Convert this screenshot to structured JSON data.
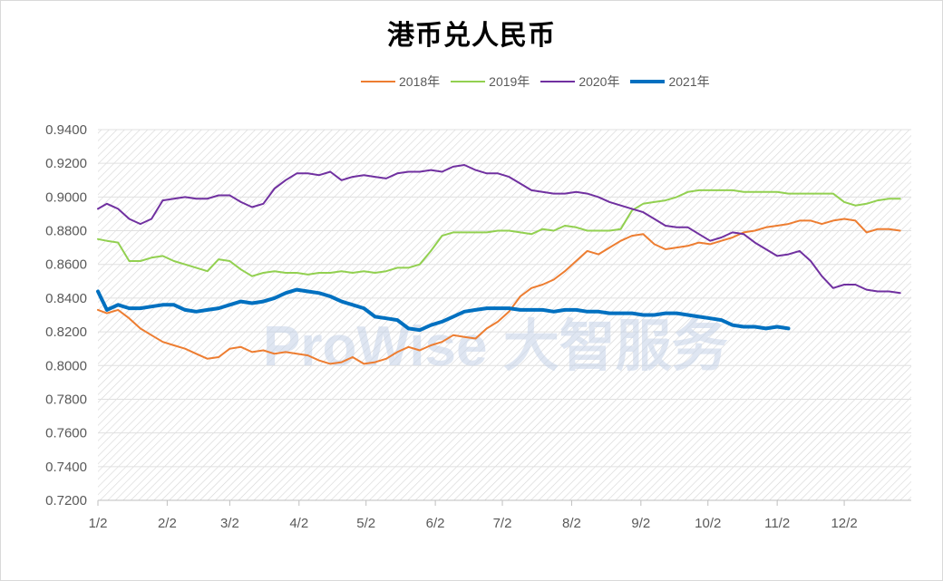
{
  "chart_data": {
    "type": "line",
    "title": "港币兑人民币",
    "watermark": "ProWise 大智服务",
    "ylim": [
      0.72,
      0.94
    ],
    "y_ticks": [
      "0.9400",
      "0.9200",
      "0.9000",
      "0.8800",
      "0.8600",
      "0.8400",
      "0.8200",
      "0.8000",
      "0.7800",
      "0.7600",
      "0.7400",
      "0.7200"
    ],
    "x_ticks": [
      "1/2",
      "2/2",
      "3/2",
      "4/2",
      "5/2",
      "6/2",
      "7/2",
      "8/2",
      "9/2",
      "10/2",
      "11/2",
      "12/2"
    ],
    "legend_position": "top",
    "grid": "hatched",
    "series": [
      {
        "name": "2018年",
        "color": "#ed7d31",
        "width": 2,
        "x": [
          1,
          5,
          10,
          15,
          20,
          25,
          30,
          35,
          40,
          45,
          50,
          55,
          60,
          65,
          70,
          75,
          80,
          85,
          90,
          95,
          100,
          105,
          110,
          115,
          120,
          125,
          130,
          135,
          140,
          145,
          150,
          155,
          160,
          165,
          170,
          175,
          180,
          185,
          190,
          195,
          200,
          205,
          210,
          215,
          220,
          225,
          230,
          235,
          240,
          245,
          250,
          255,
          260,
          265,
          270,
          275,
          280,
          285,
          290,
          295,
          300,
          305,
          310,
          315,
          320,
          325,
          330,
          335,
          340,
          345,
          350,
          355,
          360
        ],
        "values": [
          0.833,
          0.831,
          0.833,
          0.828,
          0.822,
          0.818,
          0.814,
          0.812,
          0.81,
          0.807,
          0.804,
          0.805,
          0.81,
          0.811,
          0.808,
          0.809,
          0.807,
          0.808,
          0.807,
          0.806,
          0.803,
          0.801,
          0.802,
          0.805,
          0.801,
          0.802,
          0.804,
          0.808,
          0.811,
          0.809,
          0.812,
          0.814,
          0.818,
          0.817,
          0.816,
          0.822,
          0.826,
          0.832,
          0.841,
          0.846,
          0.848,
          0.851,
          0.856,
          0.862,
          0.868,
          0.866,
          0.87,
          0.874,
          0.877,
          0.878,
          0.872,
          0.869,
          0.87,
          0.871,
          0.873,
          0.872,
          0.874,
          0.876,
          0.879,
          0.88,
          0.882,
          0.883,
          0.884,
          0.886,
          0.886,
          0.884,
          0.886,
          0.887,
          0.886,
          0.879,
          0.881,
          0.881,
          0.88
        ]
      },
      {
        "name": "2019年",
        "color": "#92d050",
        "width": 2,
        "x": [
          1,
          5,
          10,
          15,
          20,
          25,
          30,
          35,
          40,
          45,
          50,
          55,
          60,
          65,
          70,
          75,
          80,
          85,
          90,
          95,
          100,
          105,
          110,
          115,
          120,
          125,
          130,
          135,
          140,
          145,
          150,
          155,
          160,
          165,
          170,
          175,
          180,
          185,
          190,
          195,
          200,
          205,
          210,
          215,
          220,
          225,
          230,
          235,
          240,
          245,
          250,
          255,
          260,
          265,
          270,
          275,
          280,
          285,
          290,
          295,
          300,
          305,
          310,
          315,
          320,
          325,
          330,
          335,
          340,
          345,
          350,
          355,
          360
        ],
        "values": [
          0.875,
          0.874,
          0.873,
          0.862,
          0.862,
          0.864,
          0.865,
          0.862,
          0.86,
          0.858,
          0.856,
          0.863,
          0.862,
          0.857,
          0.853,
          0.855,
          0.856,
          0.855,
          0.855,
          0.854,
          0.855,
          0.855,
          0.856,
          0.855,
          0.856,
          0.855,
          0.856,
          0.858,
          0.858,
          0.86,
          0.868,
          0.877,
          0.879,
          0.879,
          0.879,
          0.879,
          0.88,
          0.88,
          0.879,
          0.878,
          0.881,
          0.88,
          0.883,
          0.882,
          0.88,
          0.88,
          0.88,
          0.881,
          0.892,
          0.896,
          0.897,
          0.898,
          0.9,
          0.903,
          0.904,
          0.904,
          0.904,
          0.904,
          0.903,
          0.903,
          0.903,
          0.903,
          0.902,
          0.902,
          0.902,
          0.902,
          0.902,
          0.897,
          0.895,
          0.896,
          0.898,
          0.899,
          0.899
        ]
      },
      {
        "name": "2020年",
        "color": "#7030a0",
        "width": 2,
        "x": [
          1,
          5,
          10,
          15,
          20,
          25,
          30,
          35,
          40,
          45,
          50,
          55,
          60,
          65,
          70,
          75,
          80,
          85,
          90,
          95,
          100,
          105,
          110,
          115,
          120,
          125,
          130,
          135,
          140,
          145,
          150,
          155,
          160,
          165,
          170,
          175,
          180,
          185,
          190,
          195,
          200,
          205,
          210,
          215,
          220,
          225,
          230,
          235,
          240,
          245,
          250,
          255,
          260,
          265,
          270,
          275,
          280,
          285,
          290,
          295,
          300,
          305,
          310,
          315,
          320,
          325,
          330,
          335,
          340,
          345,
          350,
          355,
          360
        ],
        "values": [
          0.893,
          0.896,
          0.893,
          0.887,
          0.884,
          0.887,
          0.898,
          0.899,
          0.9,
          0.899,
          0.899,
          0.901,
          0.901,
          0.897,
          0.894,
          0.896,
          0.905,
          0.91,
          0.914,
          0.914,
          0.913,
          0.915,
          0.91,
          0.912,
          0.913,
          0.912,
          0.911,
          0.914,
          0.915,
          0.915,
          0.916,
          0.915,
          0.918,
          0.919,
          0.916,
          0.914,
          0.914,
          0.912,
          0.908,
          0.904,
          0.903,
          0.902,
          0.902,
          0.903,
          0.902,
          0.9,
          0.897,
          0.895,
          0.893,
          0.891,
          0.887,
          0.883,
          0.882,
          0.882,
          0.878,
          0.874,
          0.876,
          0.879,
          0.878,
          0.873,
          0.869,
          0.865,
          0.866,
          0.868,
          0.862,
          0.853,
          0.846,
          0.848,
          0.848,
          0.845,
          0.844,
          0.844,
          0.843
        ]
      },
      {
        "name": "2021年",
        "color": "#0070c0",
        "width": 4,
        "x": [
          1,
          5,
          10,
          15,
          20,
          25,
          30,
          35,
          40,
          45,
          50,
          55,
          60,
          65,
          70,
          75,
          80,
          85,
          90,
          95,
          100,
          105,
          110,
          115,
          120,
          125,
          130,
          135,
          140,
          145,
          150,
          155,
          160,
          165,
          170,
          175,
          180,
          185,
          190,
          195,
          200,
          205,
          210,
          215,
          220,
          225,
          230,
          235,
          240,
          245,
          250,
          255,
          260,
          265,
          270,
          275,
          280,
          285,
          290,
          295,
          300,
          305,
          310
        ],
        "values": [
          0.844,
          0.833,
          0.836,
          0.834,
          0.834,
          0.835,
          0.836,
          0.836,
          0.833,
          0.832,
          0.833,
          0.834,
          0.836,
          0.838,
          0.837,
          0.838,
          0.84,
          0.843,
          0.845,
          0.844,
          0.843,
          0.841,
          0.838,
          0.836,
          0.834,
          0.829,
          0.828,
          0.827,
          0.822,
          0.821,
          0.824,
          0.826,
          0.829,
          0.832,
          0.833,
          0.834,
          0.834,
          0.834,
          0.833,
          0.833,
          0.833,
          0.832,
          0.833,
          0.833,
          0.832,
          0.832,
          0.831,
          0.831,
          0.831,
          0.83,
          0.83,
          0.831,
          0.831,
          0.83,
          0.829,
          0.828,
          0.827,
          0.824,
          0.823,
          0.823,
          0.822,
          0.823,
          0.822
        ]
      }
    ]
  }
}
